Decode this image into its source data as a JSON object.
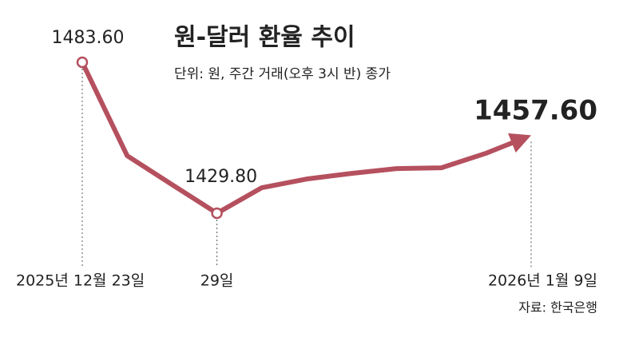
{
  "chart_data": {
    "type": "line",
    "title": "원-달러 환율 추이",
    "subtitle": "단위: 원, 주간 거래(오후 3시 반) 종가",
    "source": "자료: 한국은행",
    "categories": [
      "2025년 12월 23일",
      null,
      null,
      "29일",
      null,
      null,
      null,
      null,
      null,
      null,
      "2026년 1월 9일"
    ],
    "values": [
      1483.6,
      1450.3,
      1440.0,
      1429.8,
      1438.9,
      1442.0,
      1444.0,
      1445.7,
      1446.0,
      1451.2,
      1457.6
    ],
    "value_labels": [
      "1483.60",
      null,
      null,
      "1429.80",
      null,
      null,
      null,
      null,
      null,
      null,
      "1457.60"
    ],
    "color": "#b5505e"
  }
}
